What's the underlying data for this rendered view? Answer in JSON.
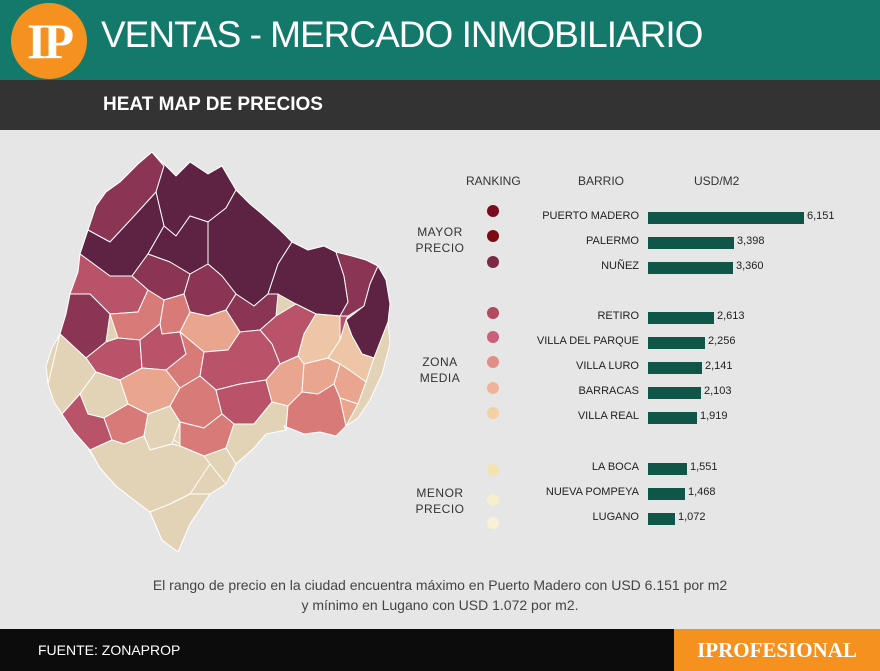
{
  "header": {
    "logo": "IP",
    "title": "VENTAS - MERCADO INMOBILIARIO",
    "subtitle": "HEAT MAP DE PRECIOS"
  },
  "legend": {
    "ranking": "RANKING",
    "barrio": "BARRIO",
    "unit": "USD/M2",
    "groups": [
      {
        "line1": "MAYOR",
        "line2": "PRECIO"
      },
      {
        "line1": "ZONA",
        "line2": "MEDIA"
      },
      {
        "line1": "MENOR",
        "line2": "PRECIO"
      }
    ]
  },
  "chart_data": {
    "type": "bar",
    "orientation": "horizontal",
    "title": "HEAT MAP DE PRECIOS",
    "xlabel": "USD/M2",
    "xlim": [
      0,
      6151
    ],
    "categories": [
      "PUERTO MADERO",
      "PALERMO",
      "NUÑEZ",
      "RETIRO",
      "VILLA DEL PARQUE",
      "VILLA LURO",
      "BARRACAS",
      "VILLA REAL",
      "LA BOCA",
      "NUEVA POMPEYA",
      "LUGANO"
    ],
    "values": [
      6151,
      3398,
      3360,
      2613,
      2256,
      2141,
      2103,
      1919,
      1551,
      1468,
      1072
    ],
    "value_labels": [
      "6,151",
      "3,398",
      "3,360",
      "2,613",
      "2,256",
      "2,141",
      "2,103",
      "1,919",
      "1,551",
      "1,468",
      "1,072"
    ],
    "groups": [
      0,
      0,
      0,
      1,
      1,
      1,
      1,
      1,
      2,
      2,
      2
    ],
    "dot_colors": [
      "#7a0b1e",
      "#7a0b12",
      "#7a2a45",
      "#b24a60",
      "#c9607a",
      "#e08e86",
      "#f0b39a",
      "#f4d0a5",
      "#f2e3b0",
      "#f6efcf",
      "#f8f1d6"
    ],
    "bar_color": "#0f5548"
  },
  "map": {
    "colors": {
      "dark": "#5e2242",
      "wine": "#8a3553",
      "rose": "#b8536a",
      "coral": "#d87a78",
      "salmon": "#e9a58e",
      "peach": "#edc7a5",
      "beige": "#e2d3b7"
    }
  },
  "note": {
    "line1": "El rango de precio en la ciudad encuentra máximo en Puerto Madero con USD 6.151 por m2",
    "line2": "y mínimo en Lugano con USD 1.072 por m2."
  },
  "footer": {
    "source": "FUENTE: ZONAPROP",
    "brand": "IPROFESIONAL"
  }
}
